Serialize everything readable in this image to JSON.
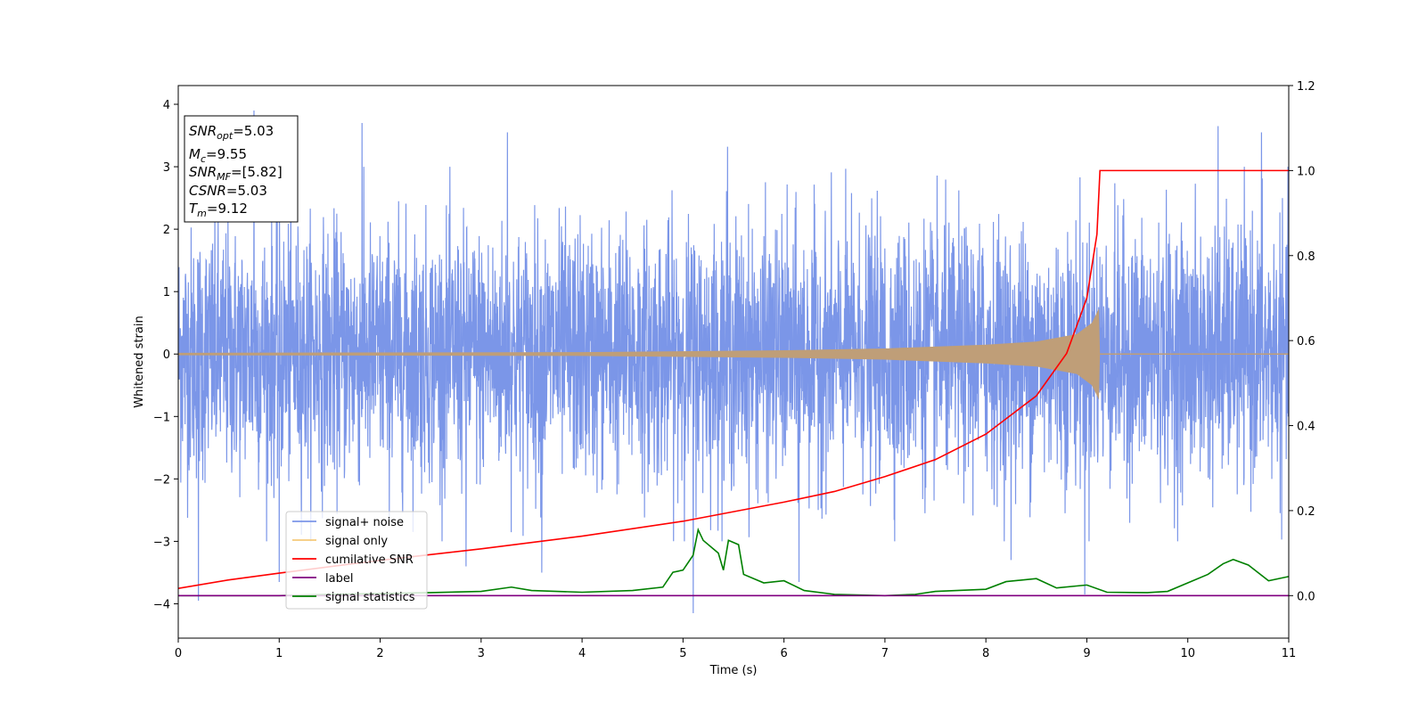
{
  "chart_data": {
    "type": "line",
    "xlabel": "Time (s)",
    "ylabel_left": "Whitened strain",
    "ylabel_right": "",
    "xlim": [
      0,
      11
    ],
    "ylim_left": [
      -4.55,
      4.3
    ],
    "ylim_right": [
      -0.1,
      1.2
    ],
    "x_ticks": [
      "0",
      "1",
      "2",
      "3",
      "4",
      "5",
      "6",
      "7",
      "8",
      "9",
      "10",
      "11"
    ],
    "y_left_ticks": [
      "4",
      "3",
      "2",
      "1",
      "0",
      "−1",
      "−2",
      "−3",
      "−4"
    ],
    "y_right_ticks": [
      "1.2",
      "1.0",
      "0.8",
      "0.6",
      "0.4",
      "0.2",
      "0.0"
    ],
    "grid": false,
    "legend_position": "lower-left",
    "annotation": {
      "snr_opt": "=5.03",
      "mc": "=9.55",
      "snr_mf": "=[5.82]",
      "csnr": "=5.03",
      "tm": "=9.12"
    },
    "series": [
      {
        "name": "signal+ noise",
        "axis": "left",
        "color": "#7b96e8",
        "description_kind": "noise",
        "peaks": [
          [
            0.75,
            3.9
          ],
          [
            1.82,
            3.7
          ],
          [
            3.26,
            3.55
          ],
          [
            5.44,
            3.32
          ],
          [
            10.3,
            3.65
          ],
          [
            10.73,
            3.55
          ],
          [
            0.2,
            -3.95
          ],
          [
            5.1,
            -4.15
          ],
          [
            1.0,
            -3.65
          ],
          [
            6.15,
            -3.65
          ],
          [
            8.25,
            -3.3
          ],
          [
            8.98,
            -3.85
          ],
          [
            3.6,
            -3.5
          ],
          [
            2.85,
            -3.4
          ]
        ]
      },
      {
        "name": "signal only",
        "axis": "left",
        "color": "#f5c97a",
        "envelope": [
          [
            0,
            0.02
          ],
          [
            4,
            0.03
          ],
          [
            6,
            0.06
          ],
          [
            7,
            0.09
          ],
          [
            8,
            0.15
          ],
          [
            8.5,
            0.2
          ],
          [
            8.9,
            0.32
          ],
          [
            9.05,
            0.5
          ],
          [
            9.12,
            0.73
          ],
          [
            9.13,
            0.0
          ],
          [
            11,
            0.0
          ]
        ]
      },
      {
        "name": "cumilative SNR",
        "axis": "right",
        "color": "#ff0000",
        "points": [
          [
            0,
            0.017
          ],
          [
            0.5,
            0.037
          ],
          [
            1,
            0.053
          ],
          [
            2,
            0.083
          ],
          [
            3,
            0.11
          ],
          [
            4,
            0.14
          ],
          [
            5,
            0.175
          ],
          [
            6,
            0.22
          ],
          [
            6.5,
            0.245
          ],
          [
            7,
            0.28
          ],
          [
            7.5,
            0.32
          ],
          [
            8,
            0.38
          ],
          [
            8.5,
            0.47
          ],
          [
            8.8,
            0.57
          ],
          [
            9.0,
            0.7
          ],
          [
            9.1,
            0.85
          ],
          [
            9.13,
            1.0
          ],
          [
            11,
            1.0
          ]
        ]
      },
      {
        "name": "label",
        "axis": "right",
        "color": "#800080",
        "points": [
          [
            0,
            0.0
          ],
          [
            11,
            0.0
          ]
        ]
      },
      {
        "name": "signal statistics",
        "axis": "right",
        "color": "#008000",
        "points": [
          [
            0,
            0.0
          ],
          [
            1.0,
            0.0
          ],
          [
            1.5,
            0.003
          ],
          [
            2.0,
            0.005
          ],
          [
            2.5,
            0.007
          ],
          [
            3.0,
            0.01
          ],
          [
            3.3,
            0.02
          ],
          [
            3.5,
            0.012
          ],
          [
            4.0,
            0.008
          ],
          [
            4.5,
            0.012
          ],
          [
            4.8,
            0.02
          ],
          [
            4.9,
            0.055
          ],
          [
            5.0,
            0.06
          ],
          [
            5.1,
            0.095
          ],
          [
            5.15,
            0.155
          ],
          [
            5.2,
            0.13
          ],
          [
            5.35,
            0.1
          ],
          [
            5.4,
            0.06
          ],
          [
            5.45,
            0.13
          ],
          [
            5.55,
            0.12
          ],
          [
            5.6,
            0.05
          ],
          [
            5.8,
            0.03
          ],
          [
            6.0,
            0.035
          ],
          [
            6.2,
            0.012
          ],
          [
            6.5,
            0.003
          ],
          [
            7.0,
            0.0
          ],
          [
            7.3,
            0.003
          ],
          [
            7.5,
            0.01
          ],
          [
            8.0,
            0.015
          ],
          [
            8.2,
            0.033
          ],
          [
            8.5,
            0.04
          ],
          [
            8.7,
            0.018
          ],
          [
            9.0,
            0.025
          ],
          [
            9.2,
            0.008
          ],
          [
            9.6,
            0.007
          ],
          [
            9.8,
            0.01
          ],
          [
            10.0,
            0.03
          ],
          [
            10.2,
            0.05
          ],
          [
            10.35,
            0.075
          ],
          [
            10.45,
            0.085
          ],
          [
            10.6,
            0.072
          ],
          [
            10.8,
            0.035
          ],
          [
            11.0,
            0.045
          ]
        ]
      }
    ]
  },
  "colors": {
    "noise": "#7b96e8",
    "signal": "#f5c97a",
    "signal_overlap": "#bf9e78",
    "cumulative": "#ff0000",
    "label": "#800080",
    "statistics": "#008000"
  }
}
